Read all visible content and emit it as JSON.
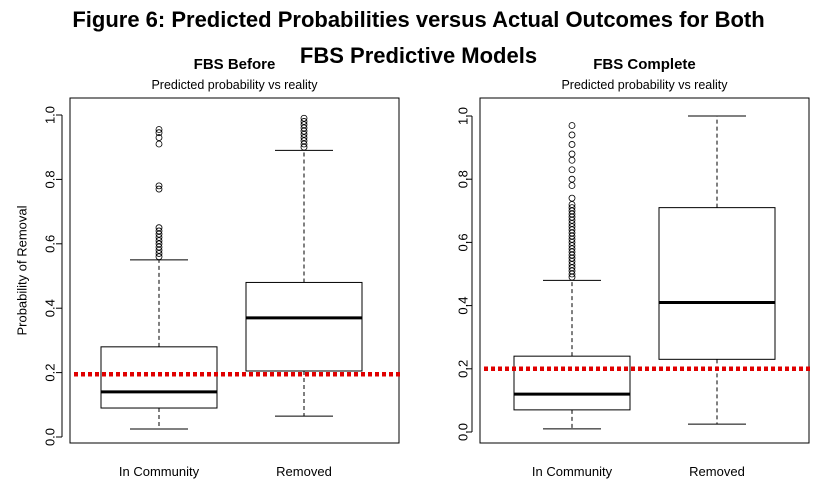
{
  "figure": {
    "title_line1": "Figure 6: Predicted Probabilities versus Actual Outcomes for Both",
    "title_line2": "FBS Predictive Models"
  },
  "chart_data": [
    {
      "type": "box",
      "title": "FBS Before",
      "subtitle": "Predicted probability vs reality",
      "ylabel": "Probability of Removal",
      "xlabel": "",
      "ylim": [
        0,
        1
      ],
      "yticks": [
        "0.0",
        "0.2",
        "0.4",
        "0.6",
        "0.8",
        "1.0"
      ],
      "categories": [
        "In Community",
        "Removed"
      ],
      "boxes": [
        {
          "whisker_low": 0.025,
          "q1": 0.09,
          "median": 0.14,
          "q3": 0.28,
          "whisker_high": 0.55,
          "outliers": [
            0.56,
            0.57,
            0.58,
            0.59,
            0.6,
            0.61,
            0.62,
            0.63,
            0.64,
            0.65,
            0.77,
            0.78,
            0.91,
            0.93,
            0.945,
            0.955
          ]
        },
        {
          "whisker_low": 0.065,
          "q1": 0.205,
          "median": 0.37,
          "q3": 0.48,
          "whisker_high": 0.89,
          "outliers": [
            0.9,
            0.91,
            0.92,
            0.93,
            0.94,
            0.95,
            0.96,
            0.97,
            0.98,
            0.99
          ]
        }
      ],
      "reference_line": {
        "y": 0.195,
        "color": "#e00000",
        "style": "dotted"
      }
    },
    {
      "type": "box",
      "title": "FBS Complete",
      "subtitle": "Predicted probability vs reality",
      "ylabel": "",
      "xlabel": "",
      "ylim": [
        0,
        1
      ],
      "yticks": [
        "0.0",
        "0.2",
        "0.4",
        "0.6",
        "0.8",
        "1.0"
      ],
      "categories": [
        "In Community",
        "Removed"
      ],
      "boxes": [
        {
          "whisker_low": 0.01,
          "q1": 0.07,
          "median": 0.12,
          "q3": 0.24,
          "whisker_high": 0.48,
          "outliers": [
            0.49,
            0.5,
            0.51,
            0.52,
            0.53,
            0.54,
            0.55,
            0.56,
            0.57,
            0.58,
            0.59,
            0.6,
            0.61,
            0.62,
            0.63,
            0.64,
            0.65,
            0.66,
            0.67,
            0.68,
            0.69,
            0.7,
            0.71,
            0.72,
            0.74,
            0.78,
            0.8,
            0.83,
            0.86,
            0.88,
            0.91,
            0.94,
            0.97
          ]
        },
        {
          "whisker_low": 0.025,
          "q1": 0.23,
          "median": 0.41,
          "q3": 0.71,
          "whisker_high": 1.0,
          "outliers": []
        }
      ],
      "reference_line": {
        "y": 0.2,
        "color": "#e00000",
        "style": "dotted"
      }
    }
  ]
}
